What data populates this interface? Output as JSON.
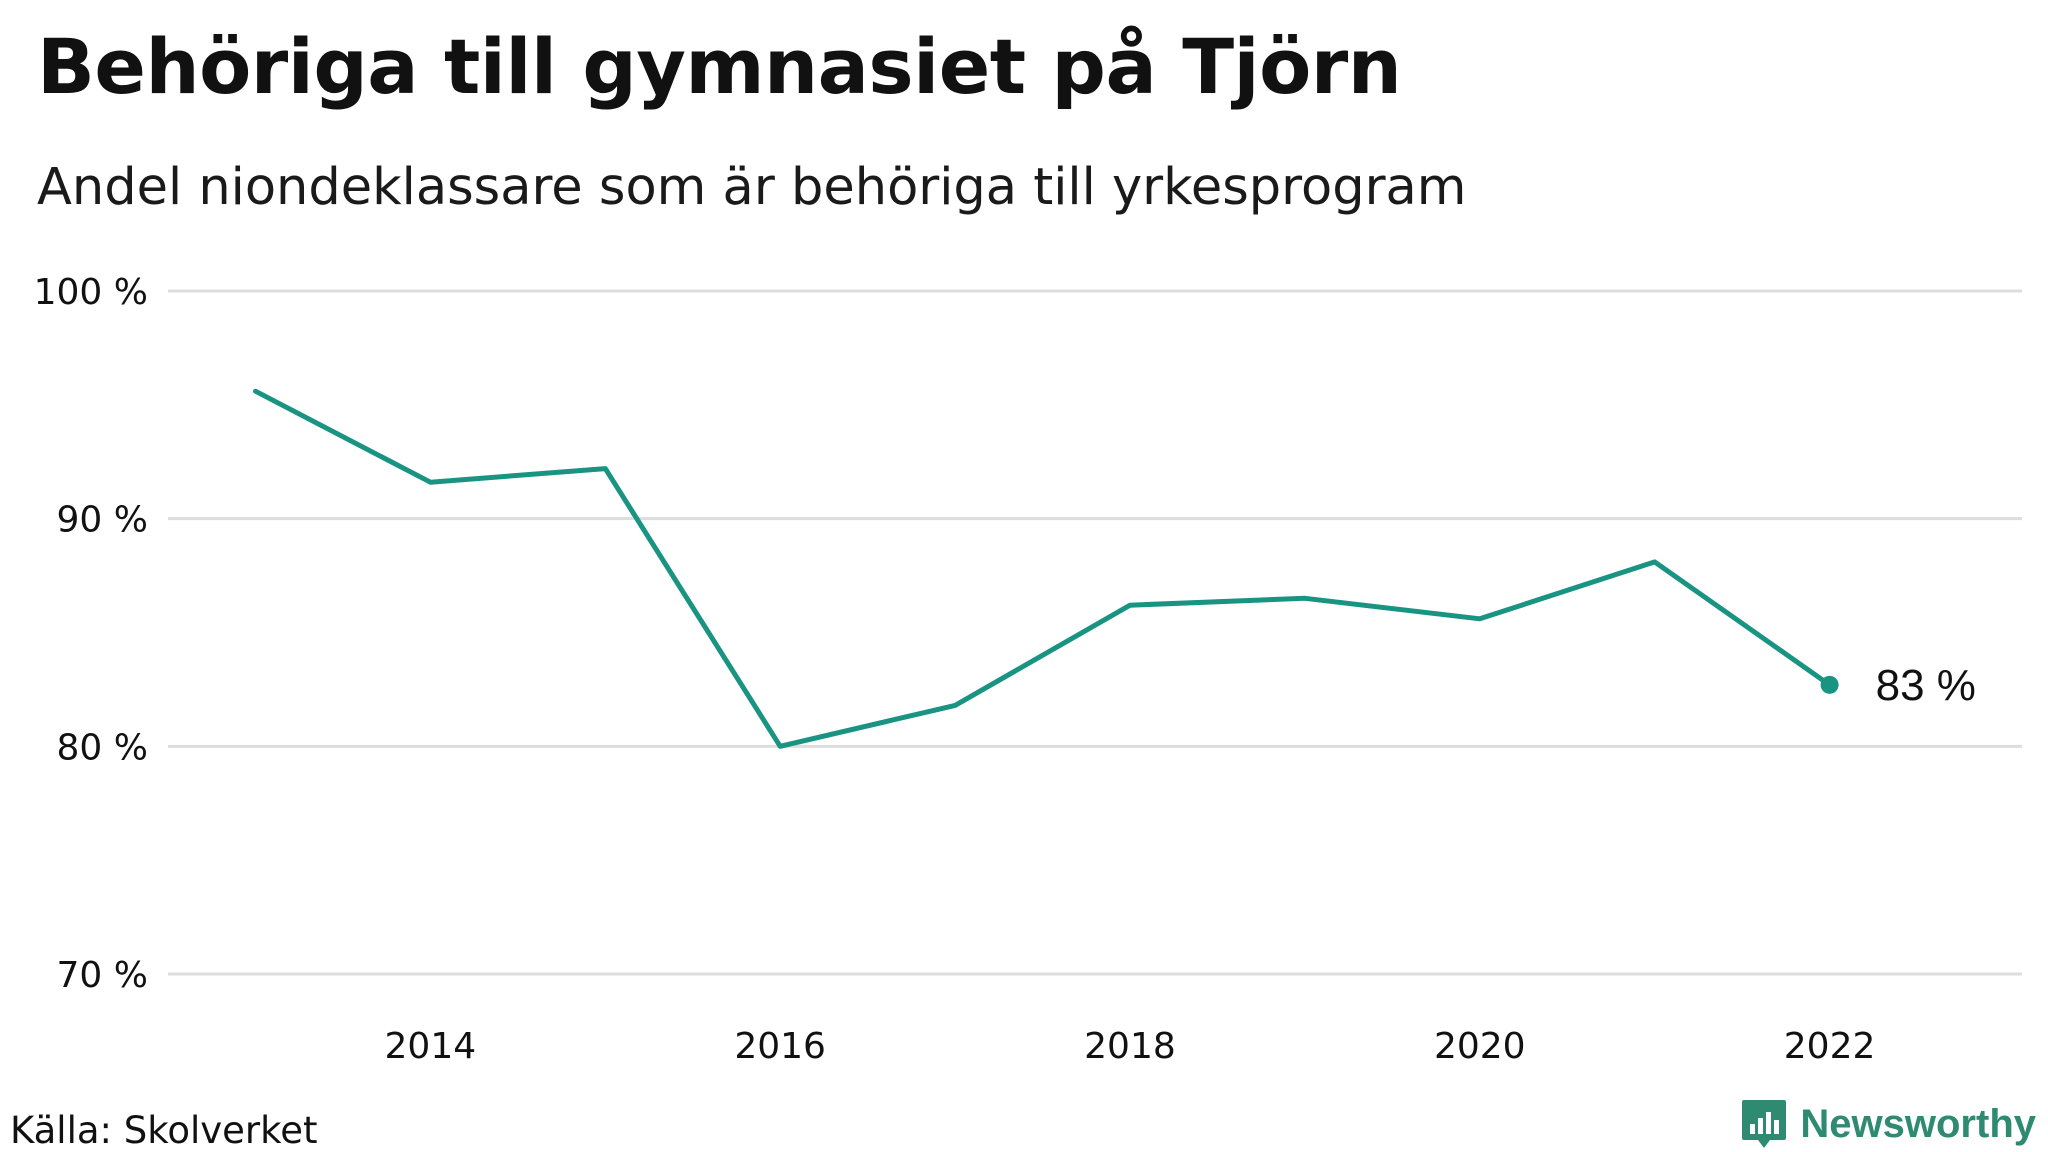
{
  "header": {
    "title": "Behöriga till gymnasiet på Tjörn",
    "subtitle": "Andel niondeklassare som är behöriga till yrkesprogram"
  },
  "footer": {
    "source": "Källa: Skolverket",
    "brand": "Newsworthy"
  },
  "colors": {
    "line": "#1a9482",
    "grid": "#dddddd",
    "brand": "#2e8b72"
  },
  "chart_data": {
    "type": "line",
    "title": "Behöriga till gymnasiet på Tjörn",
    "subtitle": "Andel niondeklassare som är behöriga till yrkesprogram",
    "xlabel": "",
    "ylabel": "",
    "x": [
      2013,
      2014,
      2015,
      2016,
      2017,
      2018,
      2019,
      2020,
      2021,
      2022
    ],
    "series": [
      {
        "name": "Andel behöriga till yrkesprogram",
        "values": [
          95.6,
          91.6,
          92.2,
          80.0,
          81.8,
          86.2,
          86.5,
          85.6,
          88.1,
          82.7
        ]
      }
    ],
    "xlim": [
      2012.5,
      2023.1
    ],
    "ylim": [
      70,
      100
    ],
    "yticks": [
      70,
      80,
      90,
      100
    ],
    "ytick_labels": [
      "70 %",
      "80 %",
      "90 %",
      "100 %"
    ],
    "xticks": [
      2014,
      2016,
      2018,
      2020,
      2022
    ],
    "xtick_labels": [
      "2014",
      "2016",
      "2018",
      "2020",
      "2022"
    ],
    "grid": true,
    "end_label": "83 %"
  }
}
